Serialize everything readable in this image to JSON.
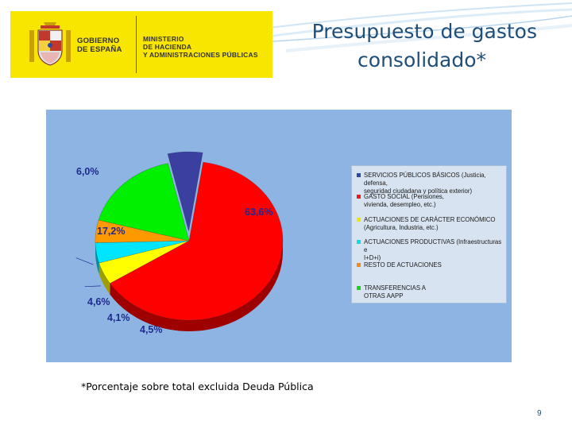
{
  "header": {
    "logo": {
      "government_lines": [
        "GOBIERNO",
        "DE ESPAÑA"
      ],
      "ministry_lines": [
        "MINISTERIO",
        "DE HACIENDA",
        "Y ADMINISTRACIONES PÚBLICAS"
      ]
    },
    "title_line1": "Presupuesto de gastos",
    "title_line2": "consolidado*"
  },
  "chart_data": {
    "type": "pie",
    "title": "",
    "legend_position": "right",
    "slices": [
      {
        "label": "SERVICIOS PÚBLICOS BÁSICOS (Justicia, defensa, seguridad ciudadana y política exterior)",
        "value": 6.0,
        "value_label": "6,0%",
        "color": "#3b3fa0"
      },
      {
        "label": "GASTO SOCIAL (Pensiones, vivienda, desempleo, etc.)",
        "value": 63.6,
        "value_label": "63,6%",
        "color": "#ff0000"
      },
      {
        "label": "ACTUACIONES DE CARÁCTER ECONÓMICO (Agricultura, Industria, etc.)",
        "value": 4.5,
        "value_label": "4,5%",
        "color": "#ffff00"
      },
      {
        "label": "ACTUACIONES PRODUCTIVAS (Infraestructuras e I+D+i)",
        "value": 4.1,
        "value_label": "4,1%",
        "color": "#00e5ff"
      },
      {
        "label": "RESTO DE ACTUACIONES",
        "value": 4.6,
        "value_label": "4,6%",
        "color": "#ff9900"
      },
      {
        "label": "TRANSFERENCIAS A OTRAS AAPP",
        "value": 17.2,
        "value_label": "17,2%",
        "color": "#00f000"
      }
    ]
  },
  "legend": {
    "items": [
      {
        "lines": [
          "SERVICIOS PÚBLICOS BÁSICOS (Justicia, defensa,",
          "seguridad ciudadana y política exterior)"
        ],
        "color": "#2e4a9a"
      },
      {
        "lines": [
          "GASTO SOCIAL (Pensiones,",
          "vivienda, desempleo, etc.)"
        ],
        "color": "#e02020"
      },
      {
        "lines": [
          "ACTUACIONES DE CARÁCTER ECONÓMICO",
          "(Agricultura, Industria, etc.)"
        ],
        "color": "#e8e800"
      },
      {
        "lines": [
          "ACTUACIONES PRODUCTIVAS (Infraestructuras e",
          "I+D+i)"
        ],
        "color": "#18d8e8"
      },
      {
        "lines": [
          "RESTO DE ACTUACIONES"
        ],
        "color": "#f08a20"
      },
      {
        "lines": [
          "TRANSFERENCIAS A",
          "OTRAS AAPP"
        ],
        "color": "#20d020"
      }
    ]
  },
  "footnote": "*Porcentaje sobre total excluida Deuda Pública",
  "page_number": "9"
}
